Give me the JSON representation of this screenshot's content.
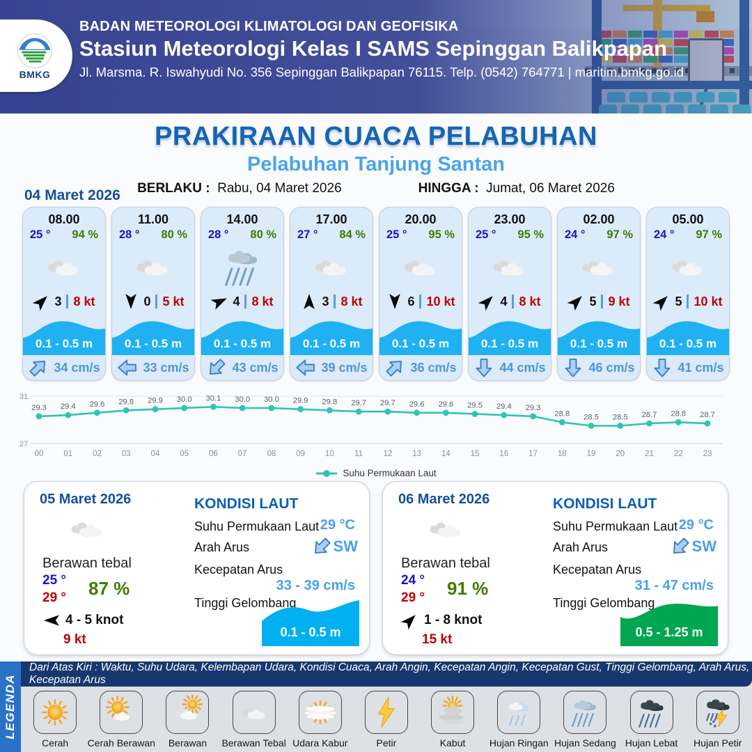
{
  "header": {
    "logo_text": "BMKG",
    "agency": "BADAN METEOROLOGI KLIMATOLOGI DAN GEOFISIKA",
    "station": "Stasiun Meteorologi Kelas I SAMS Sepinggan Balikpapan",
    "address": "Jl. Marsma. R. Iswahyudi No. 356 Sepinggan Balikpapan 76115. Telp. (0542) 764771 | maritim.bmkg.go.id"
  },
  "title": {
    "main": "PRAKIRAAN CUACA PELABUHAN",
    "sub": "Pelabuhan Tanjung Santan",
    "berlaku_label": "BERLAKU :",
    "berlaku_value": "Rabu, 04 Maret 2026",
    "hingga_label": "HINGGA :",
    "hingga_value": "Jumat, 06 Maret 2026"
  },
  "forecast_date": "04 Maret 2026",
  "cards": [
    {
      "time": "08.00",
      "temp": "25 °",
      "humidity": "94 %",
      "icon": "berawan-tebal",
      "wind_dir_deg": -45,
      "wind_speed": "3",
      "gust": "8 kt",
      "wave": "0.1 - 0.5 m",
      "current_dir_deg": -45,
      "current": "34 cm/s"
    },
    {
      "time": "11.00",
      "temp": "28 °",
      "humidity": "80 %",
      "icon": "berawan-tebal",
      "wind_dir_deg": 90,
      "wind_speed": "0",
      "gust": "5 kt",
      "wave": "0.1 - 0.5 m",
      "current_dir_deg": 180,
      "current": "33 cm/s"
    },
    {
      "time": "14.00",
      "temp": "28 °",
      "humidity": "80 %",
      "icon": "hujan-sedang",
      "wind_dir_deg": -25,
      "wind_speed": "4",
      "gust": "8 kt",
      "wave": "0.1 - 0.5 m",
      "current_dir_deg": 135,
      "current": "43 cm/s"
    },
    {
      "time": "17.00",
      "temp": "27 °",
      "humidity": "84 %",
      "icon": "berawan-tebal",
      "wind_dir_deg": -90,
      "wind_speed": "3",
      "gust": "8 kt",
      "wave": "0.1 - 0.5 m",
      "current_dir_deg": 180,
      "current": "39 cm/s"
    },
    {
      "time": "20.00",
      "temp": "25 °",
      "humidity": "95 %",
      "icon": "berawan-tebal",
      "wind_dir_deg": 90,
      "wind_speed": "6",
      "gust": "10 kt",
      "wave": "0.1 - 0.5 m",
      "current_dir_deg": -45,
      "current": "36 cm/s"
    },
    {
      "time": "23.00",
      "temp": "25 °",
      "humidity": "95 %",
      "icon": "berawan-tebal",
      "wind_dir_deg": -45,
      "wind_speed": "4",
      "gust": "8 kt",
      "wave": "0.1 - 0.5 m",
      "current_dir_deg": 90,
      "current": "44 cm/s"
    },
    {
      "time": "02.00",
      "temp": "24 °",
      "humidity": "97 %",
      "icon": "berawan-tebal",
      "wind_dir_deg": -45,
      "wind_speed": "5",
      "gust": "9 kt",
      "wave": "0.1 - 0.5 m",
      "current_dir_deg": 90,
      "current": "46 cm/s"
    },
    {
      "time": "05.00",
      "temp": "24 °",
      "humidity": "97 %",
      "icon": "berawan-tebal",
      "wind_dir_deg": -45,
      "wind_speed": "5",
      "gust": "10 kt",
      "wave": "0.1 - 0.5 m",
      "current_dir_deg": 90,
      "current": "41 cm/s"
    }
  ],
  "chart_data": {
    "type": "line",
    "series_name": "Suhu Permukaan Laut",
    "x": [
      "00",
      "01",
      "02",
      "03",
      "04",
      "05",
      "06",
      "07",
      "08",
      "09",
      "10",
      "11",
      "12",
      "13",
      "14",
      "15",
      "16",
      "17",
      "18",
      "19",
      "20",
      "21",
      "22",
      "23"
    ],
    "values": [
      29.3,
      29.4,
      29.6,
      29.8,
      29.9,
      30.0,
      30.1,
      30.0,
      30.0,
      29.9,
      29.8,
      29.7,
      29.7,
      29.6,
      29.6,
      29.5,
      29.4,
      29.3,
      28.8,
      28.5,
      28.5,
      28.7,
      28.8,
      28.7
    ],
    "ylim": [
      27,
      31
    ],
    "line_color": "#2ec4b6",
    "grid": true,
    "legend_position": "bottom"
  },
  "daily": [
    {
      "date": "05 Maret 2026",
      "icon": "berawan-tebal",
      "condition": "Berawan tebal",
      "temp_min": "25 °",
      "temp_max": "29 °",
      "humidity": "87 %",
      "wind_dir_deg": 180,
      "wind_range": "4 - 5 knot",
      "gust": "9 kt",
      "sea": {
        "title": "KONDISI LAUT",
        "sst_label": "Suhu Permukaan Laut",
        "sst": "29 °C",
        "current_dir_label": "Arah Arus",
        "current_dir": "SW",
        "current_dir_deg": 135,
        "current_speed_label": "Kecepatan Arus",
        "current_speed": "33 - 39 cm/s",
        "wave_label": "Tinggi Gelombang",
        "wave": "0.1 - 0.5 m",
        "wave_color": "#00b0f0"
      }
    },
    {
      "date": "06 Maret 2026",
      "icon": "berawan-tebal",
      "condition": "Berawan tebal",
      "temp_min": "24 °",
      "temp_max": "29 °",
      "humidity": "91 %",
      "wind_dir_deg": -45,
      "wind_range": "1 - 8 knot",
      "gust": "15 kt",
      "sea": {
        "title": "KONDISI LAUT",
        "sst_label": "Suhu Permukaan Laut",
        "sst": "29 °C",
        "current_dir_label": "Arah Arus",
        "current_dir": "SW",
        "current_dir_deg": 135,
        "current_speed_label": "Kecepatan Arus",
        "current_speed": "31 - 47 cm/s",
        "wave_label": "Tinggi Gelombang",
        "wave": "0.5 - 1.25 m",
        "wave_color": "#00a651"
      }
    }
  ],
  "legend": {
    "title": "LEGENDA",
    "description": "Dari Atas Kiri : Waktu, Suhu Udara, Kelembapan Udara, Kondisi Cuaca, Arah Angin, Kecepatan Angin, Kecepatan Gust, Tinggi Gelombang, Arah Arus, Kecepatan Arus",
    "items": [
      {
        "label": "Cerah",
        "icon": "cerah"
      },
      {
        "label": "Cerah Berawan",
        "icon": "cerah-berawan"
      },
      {
        "label": "Berawan",
        "icon": "berawan"
      },
      {
        "label": "Berawan Tebal",
        "icon": "berawan-tebal"
      },
      {
        "label": "Udara Kabur",
        "icon": "udara-kabur"
      },
      {
        "label": "Petir",
        "icon": "petir"
      },
      {
        "label": "Kabut",
        "icon": "kabut"
      },
      {
        "label": "Hujan Ringan",
        "icon": "hujan-ringan"
      },
      {
        "label": "Hujan Sedang",
        "icon": "hujan-sedang"
      },
      {
        "label": "Hujan Lebat",
        "icon": "hujan-lebat"
      },
      {
        "label": "Hujan Petir",
        "icon": "hujan-petir"
      }
    ]
  },
  "colors": {
    "title_blue": "#1565b3",
    "subtitle_blue": "#4ba5e8",
    "wave_band_cyan": "#1fb1f2",
    "temp_blue": "#1414cc",
    "humidity_green": "#3e7d00",
    "gust_red": "#c00000",
    "chart_teal": "#2ec4b6"
  }
}
